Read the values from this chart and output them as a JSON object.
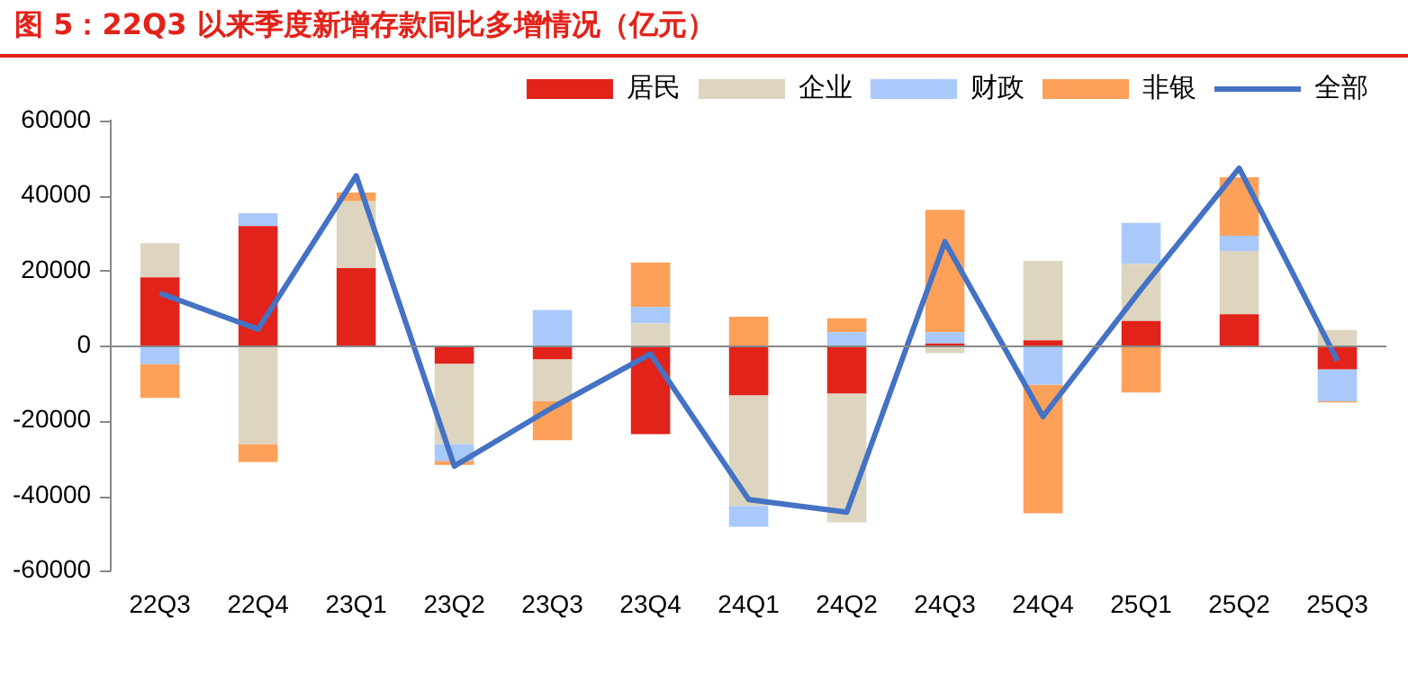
{
  "chart_data": {
    "type": "bar",
    "stacked": true,
    "title": "图 5：22Q3 以来季度新增存款同比多增情况（亿元）",
    "categories": [
      "22Q3",
      "22Q4",
      "23Q1",
      "23Q2",
      "23Q3",
      "23Q4",
      "24Q1",
      "24Q2",
      "24Q3",
      "24Q4",
      "25Q1",
      "25Q2",
      "25Q3"
    ],
    "series": [
      {
        "name": "居民",
        "color": "#e2231a",
        "values": [
          18200,
          31900,
          20700,
          -4800,
          -3600,
          -23600,
          -13200,
          -12700,
          600,
          1400,
          6600,
          8400,
          -6300
        ]
      },
      {
        "name": "企业",
        "color": "#ddd5bf",
        "values": [
          9100,
          -26200,
          17800,
          -21400,
          -11200,
          5900,
          -29500,
          -34400,
          -2000,
          21200,
          15200,
          16800,
          4200
        ]
      },
      {
        "name": "财政",
        "color": "#a9c9fb",
        "values": [
          -4900,
          3400,
          0,
          -4500,
          9500,
          4400,
          -5600,
          3600,
          3000,
          -10400,
          10900,
          4100,
          -8500
        ]
      },
      {
        "name": "非银",
        "color": "#fda05a",
        "values": [
          -9000,
          -4800,
          2300,
          -1100,
          -10400,
          11900,
          7700,
          3700,
          32600,
          -34300,
          -12500,
          15600,
          -300
        ]
      },
      {
        "name": "全部",
        "type": "line",
        "color": "#4472c4",
        "values": [
          14000,
          4400,
          45300,
          -32100,
          -16500,
          -2200,
          -41000,
          -44400,
          27700,
          -18900,
          15000,
          47300,
          -4000
        ]
      }
    ],
    "ylim": [
      -60000,
      60000
    ],
    "yticks": [
      -60000,
      -40000,
      -20000,
      0,
      20000,
      40000,
      60000
    ],
    "ref_lines": [
      {
        "axis": "y",
        "value": 0,
        "color": "#888888"
      }
    ],
    "grid": false,
    "legend": "top",
    "marker": "none"
  }
}
